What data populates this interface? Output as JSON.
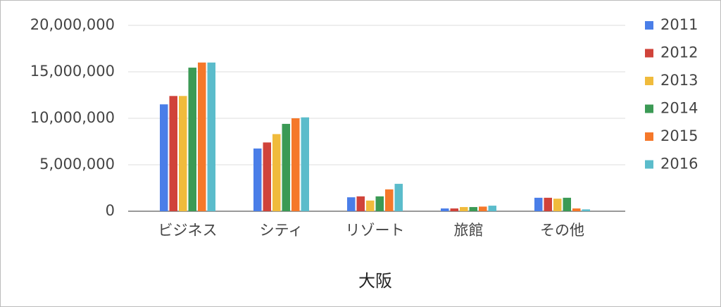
{
  "chart_data": {
    "type": "bar",
    "x_label": "大阪",
    "categories": [
      "ビジネス",
      "シティ",
      "リゾート",
      "旅館",
      "その他"
    ],
    "series": [
      {
        "name": "2011",
        "color": "#4a7ee8",
        "values": [
          11500000,
          6750000,
          1500000,
          300000,
          1450000
        ]
      },
      {
        "name": "2012",
        "color": "#d0433a",
        "values": [
          12400000,
          7400000,
          1600000,
          300000,
          1450000
        ]
      },
      {
        "name": "2013",
        "color": "#f0bb3c",
        "values": [
          12400000,
          8300000,
          1150000,
          450000,
          1350000
        ]
      },
      {
        "name": "2014",
        "color": "#3b9a55",
        "values": [
          15450000,
          9400000,
          1600000,
          450000,
          1450000
        ]
      },
      {
        "name": "2015",
        "color": "#f5782a",
        "values": [
          16000000,
          10000000,
          2350000,
          500000,
          300000
        ]
      },
      {
        "name": "2016",
        "color": "#5bbccb",
        "values": [
          16000000,
          10100000,
          2950000,
          600000,
          200000
        ]
      }
    ],
    "ylim": [
      0,
      20000000
    ],
    "yticks": [
      0,
      {
        "value": 5000000,
        "label": "5,000,000"
      },
      {
        "value": 10000000,
        "label": "10,000,000"
      },
      {
        "value": 15000000,
        "label": "15,000,000"
      },
      {
        "value": 20000000,
        "label": "20,000,000"
      }
    ],
    "grid": true,
    "legend": "right"
  }
}
